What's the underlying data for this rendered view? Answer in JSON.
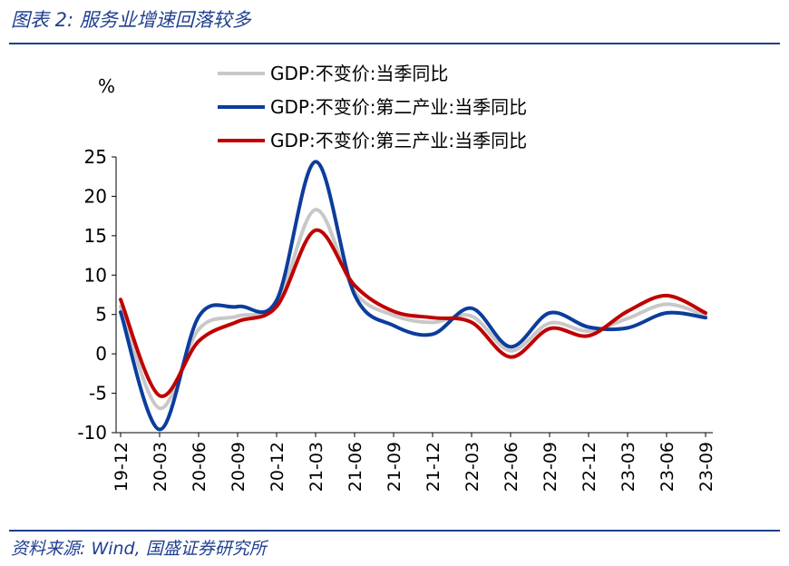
{
  "figure": {
    "title": "图表 2:  服务业增速回落较多",
    "source": "资料来源: Wind, 国盛证券研究所"
  },
  "chart_data": {
    "type": "line",
    "ylabel": "%",
    "ylim": [
      -10,
      25
    ],
    "yticks": [
      -10,
      -5,
      0,
      5,
      10,
      15,
      20,
      25
    ],
    "x": [
      "19-12",
      "20-03",
      "20-06",
      "20-09",
      "20-12",
      "21-03",
      "21-06",
      "21-09",
      "21-12",
      "22-03",
      "22-06",
      "22-09",
      "22-12",
      "23-03",
      "23-06",
      "23-09"
    ],
    "legend_position": "top",
    "grid": false,
    "series": [
      {
        "name": "GDP:不变价:当季同比",
        "color": "#c8c8c8",
        "values": [
          6.0,
          -6.9,
          3.1,
          4.8,
          6.4,
          18.3,
          7.9,
          4.9,
          4.0,
          4.8,
          0.4,
          3.9,
          2.9,
          4.5,
          6.3,
          4.9
        ]
      },
      {
        "name": "GDP:不变价:第二产业:当季同比",
        "color": "#0c3d9c",
        "values": [
          5.3,
          -9.6,
          4.7,
          6.0,
          6.8,
          24.4,
          7.5,
          3.6,
          2.5,
          5.8,
          0.9,
          5.2,
          3.4,
          3.3,
          5.2,
          4.6
        ]
      },
      {
        "name": "GDP:不变价:第三产业:当季同比",
        "color": "#c00000",
        "values": [
          6.9,
          -5.3,
          1.6,
          4.1,
          6.0,
          15.7,
          8.7,
          5.4,
          4.6,
          4.0,
          -0.4,
          3.2,
          2.3,
          5.4,
          7.4,
          5.2
        ]
      }
    ]
  }
}
